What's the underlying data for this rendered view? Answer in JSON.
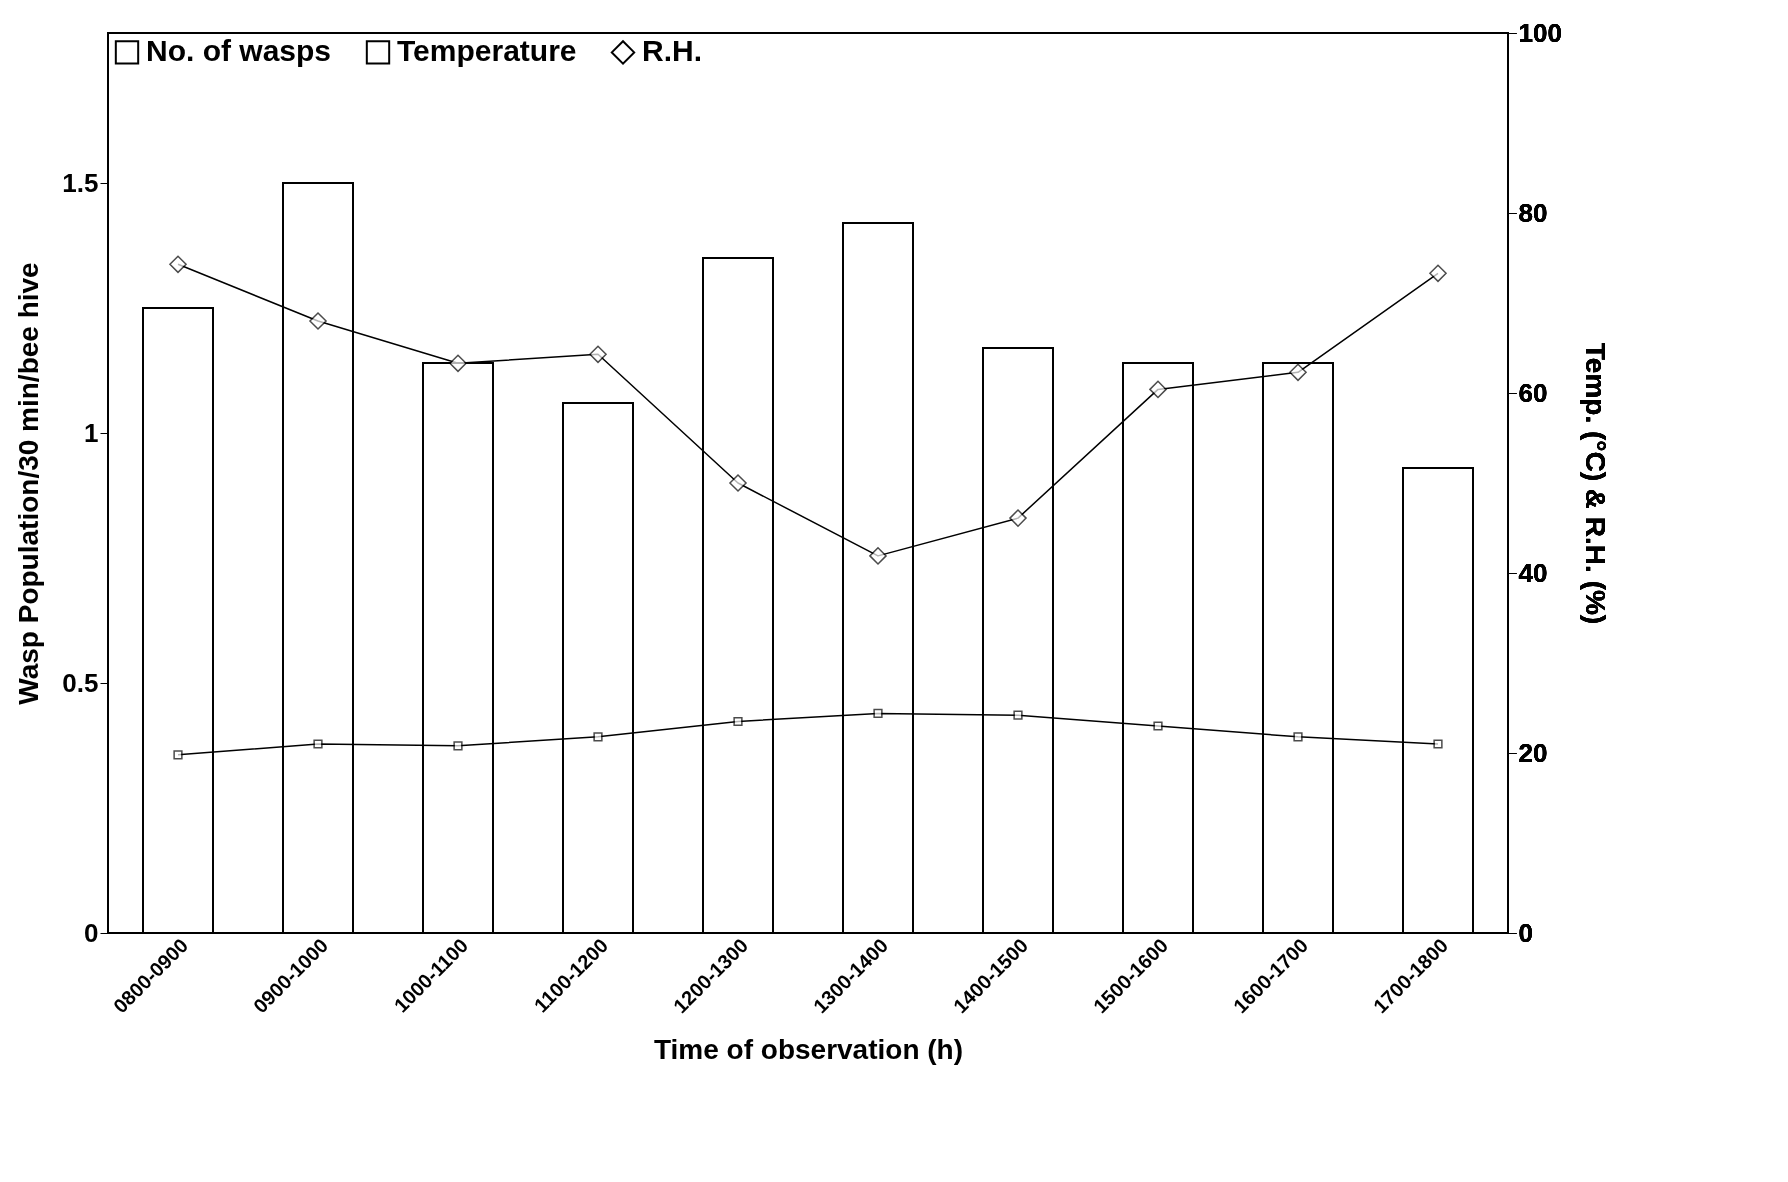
{
  "chart_data": {
    "type": "bar",
    "xlabel": "Time of observation (h)",
    "ylabel": "Wasp Population/30 min/bee hive",
    "y2label": "Temp. (°C) & R.H. (%)",
    "categories": [
      "0800-0900",
      "0900-1000",
      "1000-1100",
      "1100-1200",
      "1200-1300",
      "1300-1400",
      "1400-1500",
      "1500-1600",
      "1600-1700",
      "1700-1800"
    ],
    "series": [
      {
        "name": "No. of wasps",
        "color": "#ffffff",
        "values": [
          1.25,
          1.5,
          1.14,
          1.06,
          1.35,
          1.42,
          1.17,
          1.14,
          1.14,
          0.93
        ]
      },
      {
        "name": "Temperature",
        "type": "line",
        "axis": "y2",
        "marker": "square",
        "color": "#000000",
        "values": [
          19.8,
          21.0,
          20.8,
          21.8,
          23.5,
          24.4,
          24.2,
          23.0,
          21.8,
          21.0
        ]
      },
      {
        "name": "R.H.",
        "type": "line",
        "axis": "y2",
        "marker": "diamond",
        "color": "#000000",
        "values": [
          74.3,
          68.0,
          63.3,
          64.3,
          50.0,
          41.9,
          46.1,
          60.4,
          62.3,
          73.3
        ]
      }
    ],
    "ylim": [
      0,
      1.8
    ],
    "yticks": [
      0,
      0.5,
      1,
      1.5
    ],
    "y2lim": [
      0,
      100
    ],
    "y2ticks": [
      0,
      20,
      40,
      60,
      80,
      100
    ],
    "legend": "top left",
    "grid": false
  }
}
